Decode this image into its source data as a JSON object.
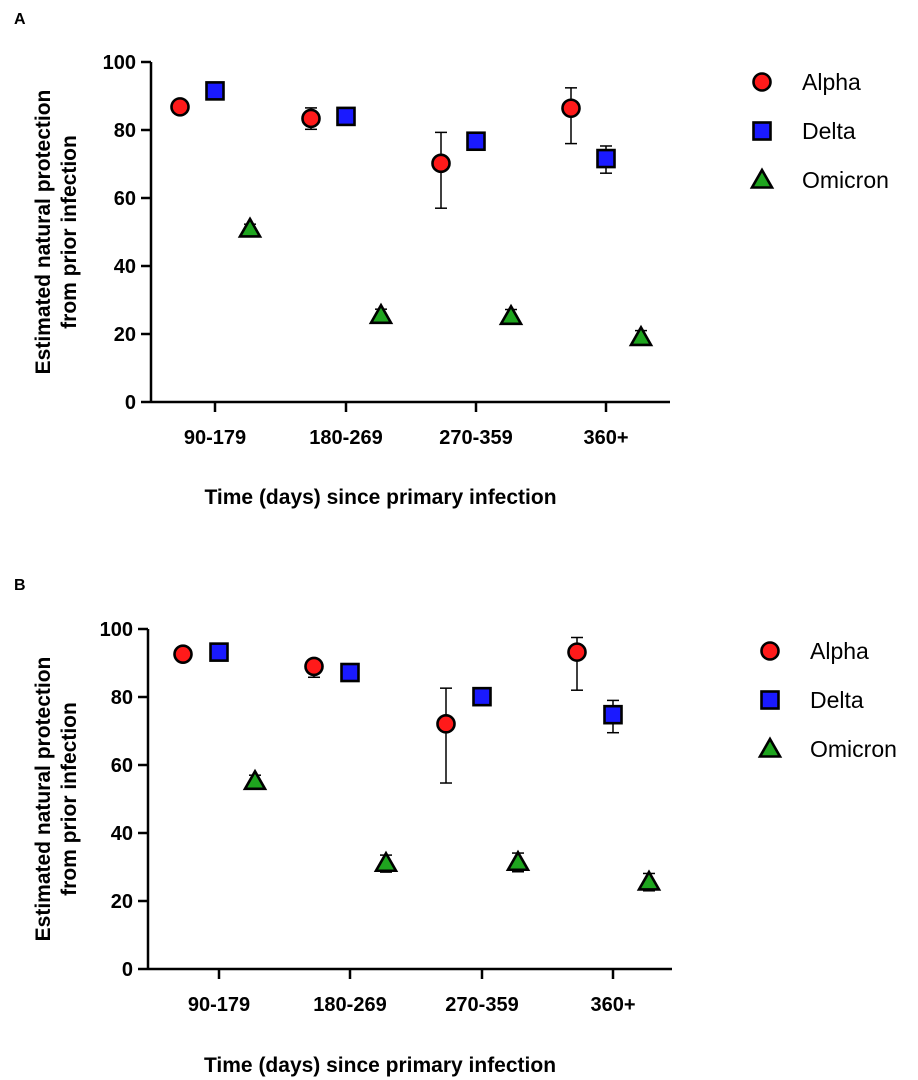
{
  "chart_data": [
    {
      "type": "scatter",
      "panel": "A",
      "categories": [
        "90-179",
        "180-269",
        "270-359",
        "360+"
      ],
      "xlabel": "Time (days) since primary infection",
      "ylabel": [
        "Estimated natural protection",
        "from prior infection"
      ],
      "ylim": [
        0,
        100
      ],
      "yticks": [
        0,
        20,
        40,
        60,
        80,
        100
      ],
      "legend_position": "right",
      "series": [
        {
          "name": "Alpha",
          "marker": "circle",
          "color": "#ff1a1a",
          "values": [
            86.8,
            83.4,
            70.2,
            86.4
          ],
          "err_low": [
            85.6,
            80.2,
            57.0,
            76.0
          ],
          "err_high": [
            88.0,
            86.5,
            79.3,
            92.4
          ]
        },
        {
          "name": "Delta",
          "marker": "square",
          "color": "#1a1aff",
          "values": [
            91.5,
            84.0,
            76.7,
            71.6
          ],
          "err_low": [
            90.6,
            82.5,
            74.8,
            67.3
          ],
          "err_high": [
            92.4,
            85.3,
            78.4,
            75.3
          ]
        },
        {
          "name": "Omicron",
          "marker": "triangle",
          "color": "#1fa51f",
          "values": [
            50.9,
            25.5,
            25.2,
            19.0
          ],
          "err_low": [
            49.4,
            23.6,
            23.2,
            17.0
          ],
          "err_high": [
            52.3,
            27.3,
            27.2,
            21.0
          ]
        }
      ]
    },
    {
      "type": "scatter",
      "panel": "B",
      "categories": [
        "90-179",
        "180-269",
        "270-359",
        "360+"
      ],
      "xlabel": "Time (days) since primary infection",
      "ylabel": [
        "Estimated natural protection",
        "from prior infection"
      ],
      "ylim": [
        0,
        100
      ],
      "yticks": [
        0,
        20,
        40,
        60,
        80,
        100
      ],
      "legend_position": "right",
      "series": [
        {
          "name": "Alpha",
          "marker": "circle",
          "color": "#ff1a1a",
          "values": [
            92.6,
            89.0,
            72.1,
            93.2
          ],
          "err_low": [
            91.3,
            85.8,
            54.7,
            82.0
          ],
          "err_high": [
            93.8,
            91.0,
            82.6,
            97.5
          ]
        },
        {
          "name": "Delta",
          "marker": "square",
          "color": "#1a1aff",
          "values": [
            93.2,
            87.2,
            80.1,
            74.8
          ],
          "err_low": [
            92.4,
            85.8,
            77.9,
            69.5
          ],
          "err_high": [
            94.0,
            88.5,
            81.9,
            79.0
          ]
        },
        {
          "name": "Omicron",
          "marker": "triangle",
          "color": "#1fa51f",
          "values": [
            55.2,
            31.1,
            31.4,
            25.6
          ],
          "err_low": [
            53.3,
            28.5,
            28.6,
            23.0
          ],
          "err_high": [
            57.0,
            33.5,
            34.1,
            28.1
          ]
        }
      ]
    }
  ]
}
